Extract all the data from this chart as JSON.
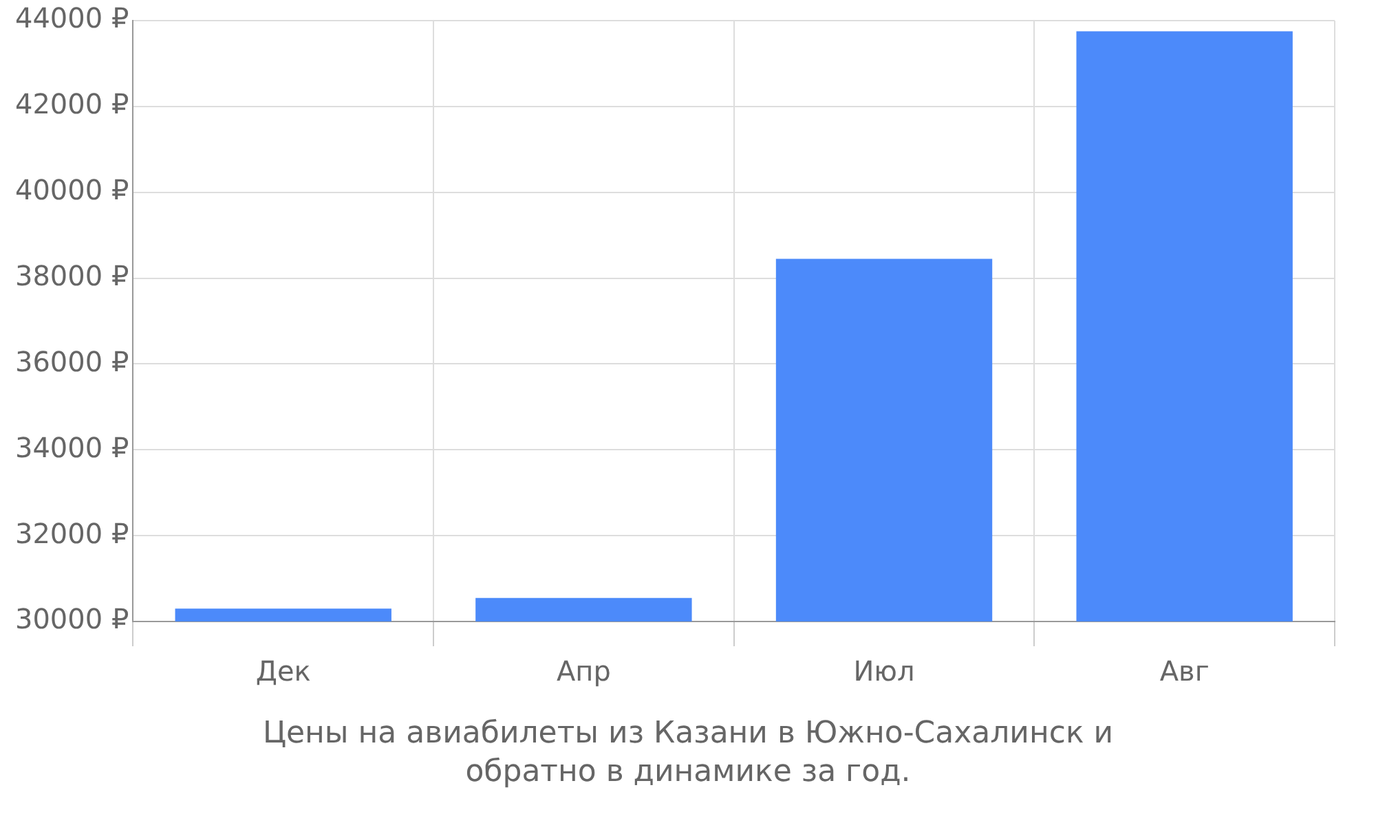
{
  "chart_data": {
    "type": "bar",
    "title": "Цены на авиабилеты из Казани в Южно-Сахалинск и обратно в динамике за год.",
    "categories": [
      "Дек",
      "Апр",
      "Июл",
      "Авг"
    ],
    "values": [
      30300,
      30550,
      38450,
      43750
    ],
    "color": "#4c8afa",
    "ylim": [
      30000,
      44000
    ],
    "yticks": [
      {
        "value": 30000,
        "label": "30000 ₽"
      },
      {
        "value": 32000,
        "label": "32000 ₽"
      },
      {
        "value": 34000,
        "label": "34000 ₽"
      },
      {
        "value": 36000,
        "label": "36000 ₽"
      },
      {
        "value": 38000,
        "label": "38000 ₽"
      },
      {
        "value": 40000,
        "label": "40000 ₽"
      },
      {
        "value": 42000,
        "label": "42000 ₽"
      },
      {
        "value": 44000,
        "label": "44000 ₽"
      }
    ],
    "grid": true
  }
}
